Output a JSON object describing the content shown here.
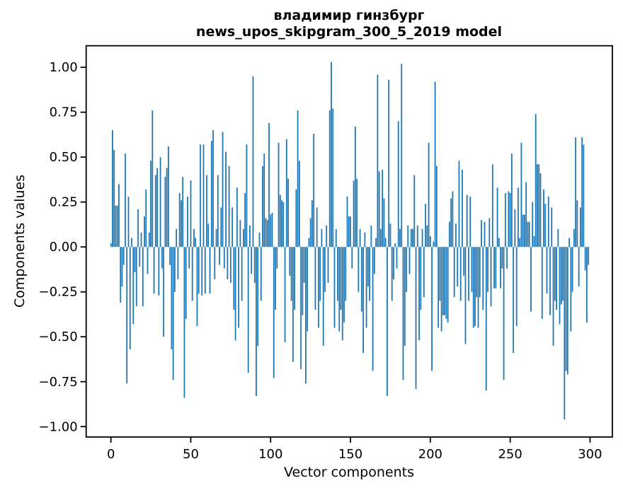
{
  "title": {
    "line1": "владимир гинзбург",
    "line2": "news_upos_skipgram_300_5_2019 model"
  },
  "chart_data": {
    "type": "bar",
    "title_line1": "владимир гинзбург",
    "title_line2": "news_upos_skipgram_300_5_2019 model",
    "xlabel": "Vector components",
    "ylabel": "Components values",
    "legend": null,
    "grid": false,
    "bar_color": "#1f77b4",
    "bar_width": 0.8,
    "n_components": 300,
    "xlim": [
      -15.5,
      314
    ],
    "ylim": [
      -1.058,
      1.12
    ],
    "x_ticks": [
      {
        "value": 0,
        "label": "0"
      },
      {
        "value": 50,
        "label": "50"
      },
      {
        "value": 100,
        "label": "100"
      },
      {
        "value": 150,
        "label": "150"
      },
      {
        "value": 200,
        "label": "200"
      },
      {
        "value": 250,
        "label": "250"
      },
      {
        "value": 300,
        "label": "300"
      }
    ],
    "y_ticks": [
      {
        "value": 1.0,
        "label": "1.00"
      },
      {
        "value": 0.75,
        "label": "0.75"
      },
      {
        "value": 0.5,
        "label": "0.50"
      },
      {
        "value": 0.25,
        "label": "0.25"
      },
      {
        "value": 0.0,
        "label": "0.00"
      },
      {
        "value": -0.25,
        "label": "−0.25"
      },
      {
        "value": -0.5,
        "label": "−0.50"
      },
      {
        "value": -0.75,
        "label": "−0.75"
      },
      {
        "value": -1.0,
        "label": "−1.00"
      }
    ],
    "values": [
      0.02,
      0.65,
      0.54,
      0.23,
      0.23,
      0.35,
      -0.31,
      -0.22,
      -0.1,
      0.52,
      -0.76,
      0.28,
      -0.57,
      0.05,
      -0.43,
      -0.14,
      -0.33,
      0.21,
      -0.11,
      0.08,
      -0.33,
      0.17,
      0.32,
      -0.15,
      0.08,
      0.48,
      0.76,
      -0.26,
      0.4,
      0.44,
      -0.27,
      0.5,
      -0.12,
      -0.5,
      0.39,
      0.44,
      0.56,
      -0.1,
      -0.57,
      -0.74,
      -0.25,
      0.1,
      -0.18,
      0.3,
      0.26,
      0.39,
      -0.84,
      -0.4,
      0.28,
      -0.12,
      0.37,
      -0.3,
      0.1,
      0.05,
      -0.44,
      -0.26,
      0.57,
      -0.27,
      0.57,
      -0.26,
      0.4,
      0.13,
      -0.26,
      0.59,
      0.65,
      -0.18,
      0.1,
      0.4,
      -0.1,
      0.22,
      0.64,
      -0.12,
      0.53,
      -0.18,
      0.45,
      -0.2,
      0.22,
      -0.35,
      -0.52,
      0.33,
      -0.45,
      0.15,
      -0.3,
      0.1,
      0.3,
      0.57,
      -0.7,
      0.12,
      -0.15,
      0.95,
      -0.2,
      -0.83,
      -0.55,
      0.08,
      -0.3,
      0.45,
      0.52,
      0.16,
      0.15,
      0.69,
      0.18,
      0.19,
      -0.73,
      -0.35,
      -0.12,
      0.58,
      0.29,
      0.26,
      0.25,
      -0.53,
      0.6,
      0.38,
      -0.16,
      -0.3,
      -0.64,
      -0.35,
      0.32,
      0.76,
      0.48,
      -0.68,
      -0.38,
      -0.2,
      -0.76,
      -0.47,
      0.05,
      0.16,
      0.26,
      0.63,
      -0.35,
      0.22,
      -0.45,
      -0.3,
      0.1,
      -0.55,
      -0.25,
      0.12,
      -0.2,
      0.76,
      1.03,
      0.77,
      -0.45,
      0.1,
      -0.3,
      -0.47,
      -0.35,
      -0.52,
      -0.42,
      -0.3,
      0.28,
      0.17,
      0.17,
      -0.12,
      0.37,
      0.67,
      0.38,
      -0.25,
      0.1,
      -0.36,
      -0.59,
      0.08,
      -0.45,
      -0.22,
      -0.3,
      0.12,
      -0.69,
      -0.15,
      0.05,
      0.96,
      0.42,
      0.1,
      0.43,
      0.27,
      0.05,
      -0.83,
      0.93,
      0.13,
      -0.3,
      -0.18,
      0.02,
      -0.12,
      0.7,
      0.1,
      1.02,
      -0.74,
      -0.55,
      -0.25,
      0.12,
      -0.15,
      0.1,
      0.1,
      0.4,
      -0.79,
      0.12,
      -0.52,
      -0.35,
      0.1,
      -0.28,
      0.24,
      0.12,
      0.58,
      0.06,
      -0.69,
      0.03,
      0.92,
      0.45,
      -0.45,
      -0.3,
      -0.47,
      -0.38,
      -0.38,
      -0.4,
      -0.42,
      0.14,
      0.27,
      0.31,
      -0.28,
      0.13,
      -0.22,
      0.48,
      -0.3,
      0.43,
      -0.16,
      -0.54,
      0.29,
      -0.3,
      0.28,
      -0.25,
      -0.45,
      -0.44,
      -0.28,
      -0.45,
      -0.28,
      0.15,
      -0.35,
      0.14,
      -0.8,
      -0.25,
      0.16,
      -0.33,
      0.46,
      -0.23,
      -0.23,
      0.33,
      0.05,
      -0.23,
      -0.12,
      -0.74,
      0.3,
      -0.12,
      0.31,
      0.3,
      0.52,
      -0.59,
      0.21,
      -0.44,
      0.33,
      0.05,
      0.58,
      0.18,
      0.18,
      0.36,
      0.14,
      0.14,
      -0.36,
      0.25,
      0.06,
      0.74,
      0.46,
      0.46,
      0.41,
      -0.4,
      0.32,
      0.24,
      -0.26,
      0.28,
      -0.38,
      0.22,
      -0.55,
      -0.3,
      -0.35,
      0.1,
      -0.43,
      -0.32,
      -0.3,
      -0.96,
      -0.69,
      -0.71,
      0.05,
      -0.47,
      -0.25,
      0.1,
      0.61,
      0.26,
      -0.22,
      0.22,
      0.61,
      0.57,
      -0.13,
      -0.42,
      -0.1
    ]
  },
  "colors": {
    "bar": "#1f77b4",
    "spine": "#000000",
    "background": "#ffffff",
    "text": "#000000"
  }
}
